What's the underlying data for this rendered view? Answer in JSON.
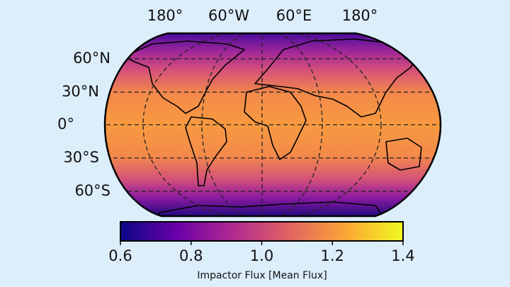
{
  "map": {
    "lon_labels": [
      "180°",
      "60°W",
      "60°E",
      "180°"
    ],
    "lat_labels": [
      "60°N",
      "30°N",
      "0°",
      "30°S",
      "60°S"
    ],
    "colorbar": {
      "label": "Impactor Flux [Mean Flux]",
      "lim": [
        0.6,
        1.4
      ],
      "ticks": [
        0.6,
        0.8,
        {
          "value": 1.0,
          "label": "1.0"
        },
        1.2,
        1.4
      ]
    }
  }
}
